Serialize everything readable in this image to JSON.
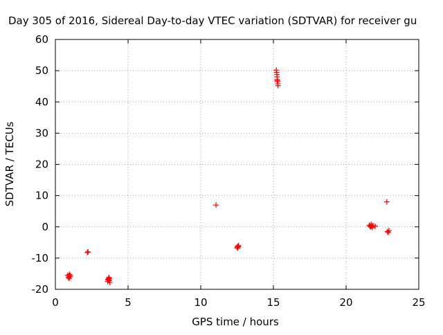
{
  "chart_data": {
    "type": "scatter",
    "title": "Day 305 of 2016, Sidereal Day-to-day VTEC variation (SDTVAR) for receiver gu",
    "xlabel": "GPS time / hours",
    "ylabel": "SDTVAR / TECUs",
    "xlim": [
      0,
      25
    ],
    "ylim": [
      -20,
      60
    ],
    "xticks": [
      0,
      5,
      10,
      15,
      20,
      25
    ],
    "yticks": [
      -20,
      -10,
      0,
      10,
      20,
      30,
      40,
      50,
      60
    ],
    "grid": true,
    "legend": "none",
    "colors": {
      "points": "#ff0000",
      "grid": "#a0a0a0",
      "axes": "#000000",
      "background": "#ffffff"
    },
    "series": [
      {
        "name": "SDTVAR",
        "marker": "plus",
        "points": [
          [
            0.85,
            -15.5
          ],
          [
            0.9,
            -16.2
          ],
          [
            0.92,
            -15.8
          ],
          [
            0.95,
            -16.5
          ],
          [
            0.97,
            -15.2
          ],
          [
            1.0,
            -16.0
          ],
          [
            1.02,
            -15.6
          ],
          [
            2.2,
            -8.2
          ],
          [
            2.25,
            -8.0
          ],
          [
            3.6,
            -17.5
          ],
          [
            3.62,
            -16.8
          ],
          [
            3.65,
            -17.0
          ],
          [
            3.67,
            -16.5
          ],
          [
            3.7,
            -17.2
          ],
          [
            3.72,
            -16.6
          ],
          [
            3.75,
            -17.8
          ],
          [
            3.68,
            -16.2
          ],
          [
            11.05,
            7.0
          ],
          [
            12.5,
            -6.5
          ],
          [
            12.55,
            -6.2
          ],
          [
            12.6,
            -6.0
          ],
          [
            12.52,
            -6.8
          ],
          [
            12.58,
            -6.4
          ],
          [
            15.2,
            50.2
          ],
          [
            15.22,
            49.5
          ],
          [
            15.24,
            48.8
          ],
          [
            15.25,
            48.0
          ],
          [
            15.26,
            47.2
          ],
          [
            15.28,
            46.5
          ],
          [
            15.3,
            45.8
          ],
          [
            15.32,
            45.2
          ],
          [
            15.27,
            46.8
          ],
          [
            21.6,
            0.5
          ],
          [
            21.65,
            0.2
          ],
          [
            21.7,
            0.0
          ],
          [
            21.72,
            0.8
          ],
          [
            21.75,
            0.3
          ],
          [
            21.8,
            -0.2
          ],
          [
            21.85,
            0.4
          ],
          [
            22.0,
            0.2
          ],
          [
            22.8,
            8.0
          ],
          [
            22.85,
            -1.5
          ],
          [
            22.9,
            -1.8
          ],
          [
            22.95,
            -1.2
          ]
        ]
      }
    ]
  }
}
